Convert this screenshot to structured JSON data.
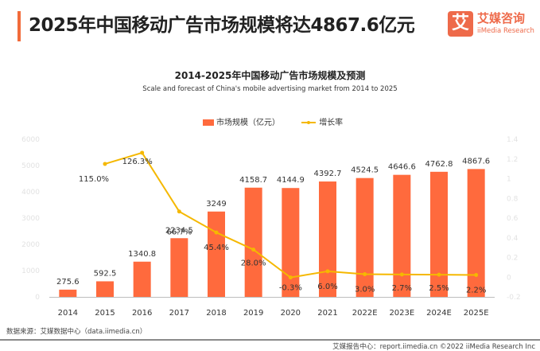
{
  "header": {
    "title": "2025年中国移动广告市场规模将达4867.6亿元",
    "accent_color": "#f26b3a"
  },
  "logo": {
    "glyph": "艾",
    "name_cn": "艾媒咨询",
    "name_en": "iiMedia Research"
  },
  "legend": {
    "bar_label": "市场规模（亿元）",
    "line_label": "增长率"
  },
  "chart_data": {
    "type": "bar+line",
    "title": "2014-2025年中国移动广告市场规模及预测",
    "subtitle": "Scale and forecast of China's mobile advertising market from 2014 to 2025",
    "categories": [
      "2014",
      "2015",
      "2016",
      "2017",
      "2018",
      "2019",
      "2020",
      "2021",
      "2022E",
      "2023E",
      "2024E",
      "2025E"
    ],
    "series": [
      {
        "name": "市场规模（亿元）",
        "type": "bar",
        "axis": "left",
        "color": "#ff6a3d",
        "values": [
          275.6,
          592.5,
          1340.8,
          2234.5,
          3249,
          4158.7,
          4144.9,
          4392.7,
          4524.5,
          4646.6,
          4762.8,
          4867.6
        ],
        "labels": [
          "275.6",
          "592.5",
          "1340.8",
          "2234.5",
          "3249",
          "4158.7",
          "4144.9",
          "4392.7",
          "4524.5",
          "4646.6",
          "4762.8",
          "4867.6"
        ]
      },
      {
        "name": "增长率",
        "type": "line",
        "axis": "right",
        "color": "#f5b800",
        "values": [
          null,
          1.15,
          1.263,
          0.667,
          0.454,
          0.28,
          -0.003,
          0.06,
          0.03,
          0.027,
          0.025,
          0.022
        ],
        "labels": [
          "",
          "115.0%",
          "126.3%",
          "66.7%",
          "45.4%",
          "28.0%",
          "-0.3%",
          "6.0%",
          "3.0%",
          "2.7%",
          "2.5%",
          "2.2%"
        ]
      }
    ],
    "y_left": {
      "ylim": [
        0,
        6000
      ],
      "ticks": [
        "0",
        "1000",
        "2000",
        "3000",
        "4000",
        "5000",
        "6000"
      ]
    },
    "y_right": {
      "ylim": [
        -0.2,
        1.4
      ],
      "ticks": [
        "-0.2",
        "0",
        "0.2",
        "0.4",
        "0.6",
        "0.8",
        "1",
        "1.2",
        "1.4"
      ]
    },
    "grid": false,
    "legend_position": "top-center"
  },
  "source": "数据来源：艾媒数据中心（data.iimedia.cn）",
  "footer": "艾媒报告中心：report.iimedia.cn  ©2022  iiMedia Research Inc"
}
